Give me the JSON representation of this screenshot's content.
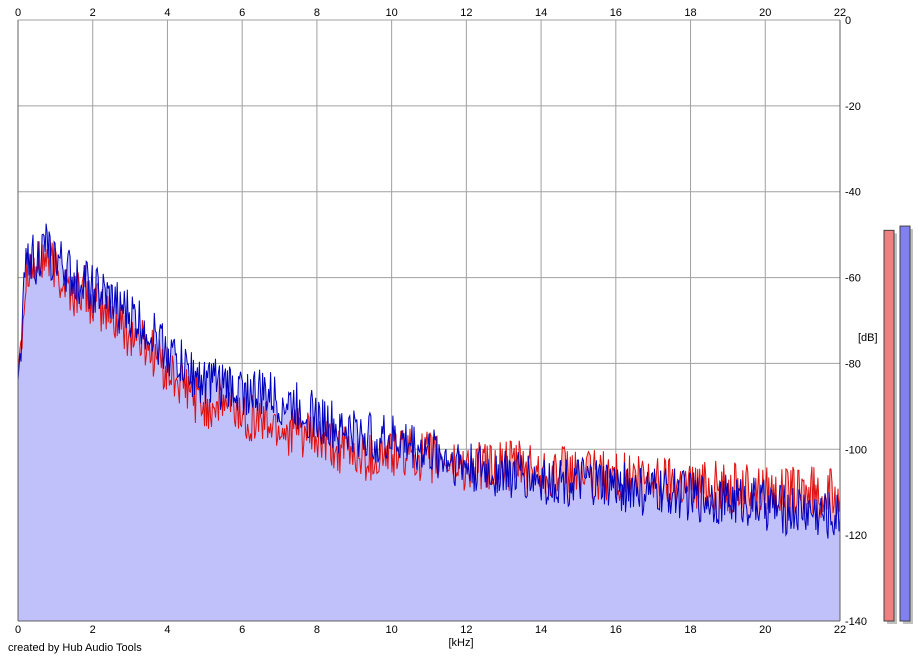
{
  "chart_data": {
    "type": "area",
    "xlabel": "[kHz]",
    "ylabel": "[dB]",
    "xlim": [
      0,
      22
    ],
    "ylim": [
      -140,
      0
    ],
    "x_ticks": [
      0,
      2,
      4,
      6,
      8,
      10,
      12,
      14,
      16,
      18,
      20,
      22
    ],
    "y_ticks": [
      0,
      -20,
      -40,
      -60,
      -80,
      -100,
      -120,
      -140
    ],
    "grid": true,
    "series": [
      {
        "color": "#e01010",
        "fill": "#f5b4b4",
        "x": [
          0,
          0.25,
          0.5,
          0.75,
          1,
          1.25,
          1.5,
          1.75,
          2,
          2.5,
          3,
          3.5,
          4,
          4.5,
          5,
          5.5,
          6,
          6.5,
          7,
          7.5,
          8,
          8.5,
          9,
          9.5,
          10,
          10.5,
          11,
          11.5,
          12,
          12.5,
          13,
          13.5,
          14,
          14.5,
          15,
          15.5,
          16,
          16.5,
          17,
          17.5,
          18,
          18.5,
          19,
          19.5,
          20,
          20.5,
          21,
          21.5,
          22
        ],
        "values": [
          -82,
          -56,
          -58,
          -55,
          -58,
          -61,
          -64,
          -62,
          -66,
          -69,
          -73,
          -76,
          -82,
          -86,
          -90,
          -89,
          -92,
          -93,
          -95,
          -96,
          -98,
          -100,
          -101,
          -102,
          -101,
          -101,
          -102,
          -103,
          -104,
          -104,
          -104,
          -104,
          -105,
          -105,
          -106,
          -106,
          -106,
          -107,
          -107,
          -107,
          -108,
          -108,
          -109,
          -109,
          -109,
          -110,
          -110,
          -110,
          -111
        ]
      },
      {
        "color": "#0000c0",
        "fill": "#c0c0fa",
        "x": [
          0,
          0.25,
          0.5,
          0.75,
          1,
          1.25,
          1.5,
          1.75,
          2,
          2.5,
          3,
          3.5,
          4,
          4.5,
          5,
          5.5,
          6,
          6.5,
          7,
          7.5,
          8,
          8.5,
          9,
          9.5,
          10,
          10.5,
          11,
          11.5,
          12,
          12.5,
          13,
          13.5,
          14,
          14.5,
          15,
          15.5,
          16,
          16.5,
          17,
          17.5,
          18,
          18.5,
          19,
          19.5,
          20,
          20.5,
          21,
          21.5,
          22
        ],
        "values": [
          -84,
          -54,
          -56,
          -53,
          -56,
          -58,
          -61,
          -60,
          -63,
          -66,
          -69,
          -72,
          -77,
          -81,
          -84,
          -85,
          -86,
          -87,
          -89,
          -90,
          -93,
          -95,
          -96,
          -97,
          -98,
          -99,
          -101,
          -102,
          -104,
          -105,
          -105,
          -106,
          -107,
          -107,
          -108,
          -108,
          -109,
          -109,
          -110,
          -110,
          -111,
          -111,
          -112,
          -112,
          -113,
          -114,
          -114,
          -115,
          -116
        ]
      }
    ],
    "level_meters": [
      {
        "color": "#f08080",
        "level_db": -49
      },
      {
        "color": "#8080f0",
        "level_db": -48
      }
    ]
  },
  "credit": "created by Hub Audio Tools"
}
